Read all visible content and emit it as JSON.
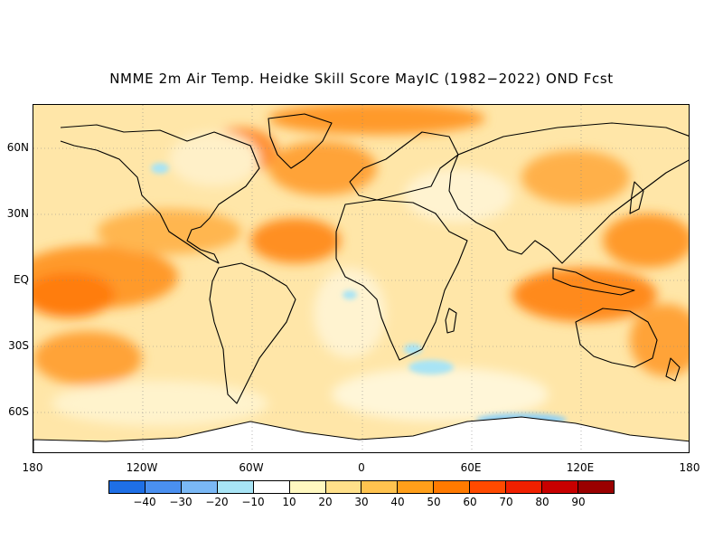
{
  "title": "NMME 2m Air Temp. Heidke Skill Score MayIC (1982−2022) OND Fcst",
  "lat_labels": [
    "60N",
    "30N",
    "EQ",
    "30S",
    "60S"
  ],
  "lon_labels": [
    "180",
    "120W",
    "60W",
    "0",
    "60E",
    "120E",
    "180"
  ],
  "colorbar": {
    "colors": [
      "#1e6fe6",
      "#4a90f0",
      "#7ab8f5",
      "#a8e4f5",
      "#ffffff",
      "#fff8c0",
      "#ffe08a",
      "#ffc34f",
      "#ff9f1a",
      "#ff7a00",
      "#ff4a00",
      "#f02000",
      "#c80000",
      "#9a0000"
    ],
    "labels": [
      "−40",
      "−30",
      "−20",
      "−10",
      "10",
      "20",
      "30",
      "40",
      "50",
      "60",
      "70",
      "80",
      "90"
    ]
  }
}
